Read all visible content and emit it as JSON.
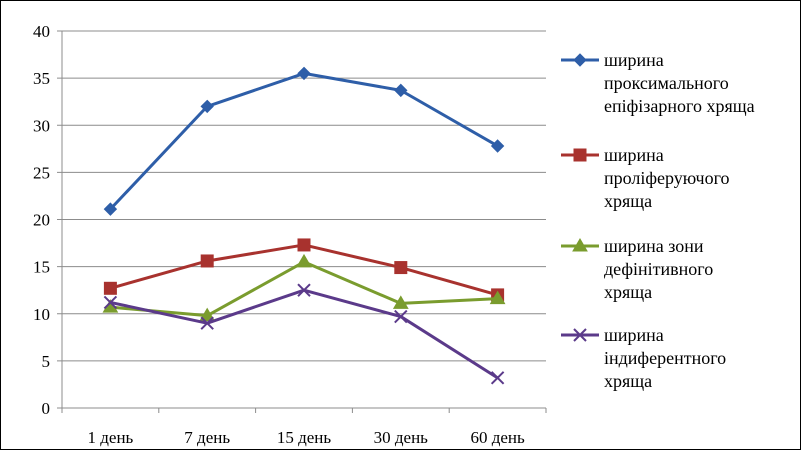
{
  "chart_data": {
    "type": "line",
    "categories": [
      "1 день",
      "7 день",
      "15 день",
      "30 день",
      "60 день"
    ],
    "ylim": [
      0,
      40
    ],
    "yticks": [
      "0",
      "5",
      "10",
      "15",
      "20",
      "25",
      "30",
      "35",
      "40"
    ],
    "grid": true,
    "legend_position": "right",
    "series": [
      {
        "name": "ширина проксимального епіфізарного хряща",
        "legend_lines": [
          "ширина",
          "проксимального",
          "епіфізарного хряща"
        ],
        "values": [
          21.1,
          32.0,
          35.5,
          33.7,
          27.8
        ],
        "color": "#2e5ea8",
        "marker": "diamond"
      },
      {
        "name": "ширина проліферуючого хряща",
        "legend_lines": [
          "ширина",
          "проліферуючого",
          "хряща"
        ],
        "values": [
          12.7,
          15.6,
          17.3,
          14.9,
          12.0
        ],
        "color": "#a8322e",
        "marker": "square"
      },
      {
        "name": "ширина зони дефінітивного хряща",
        "legend_lines": [
          "ширина зони",
          "дефінітивного",
          "хряща"
        ],
        "values": [
          10.7,
          9.8,
          15.5,
          11.1,
          11.6
        ],
        "color": "#7a9c2e",
        "marker": "triangle"
      },
      {
        "name": "ширина індиферентного хряща",
        "legend_lines": [
          "ширина",
          "індиферентного",
          "хряща"
        ],
        "values": [
          11.2,
          9.0,
          12.5,
          9.7,
          3.2
        ],
        "color": "#5b3a8a",
        "marker": "x"
      }
    ]
  }
}
